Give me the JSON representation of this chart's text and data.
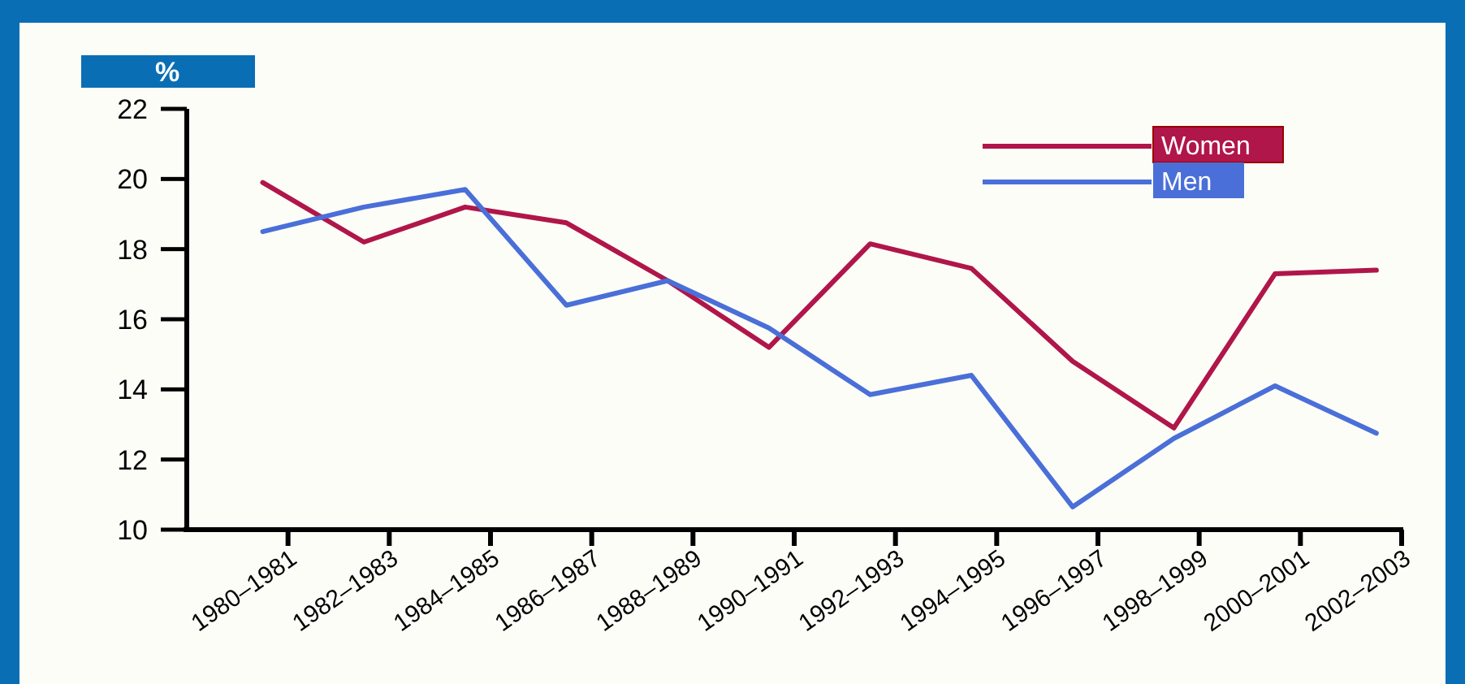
{
  "chart_data": {
    "type": "line",
    "ylabel": "%",
    "categories": [
      "1980–1981",
      "1982–1983",
      "1984–1985",
      "1986–1987",
      "1988–1989",
      "1990–1991",
      "1992–1993",
      "1994–1995",
      "1996–1997",
      "1998–1999",
      "2000–2001",
      "2002–2003"
    ],
    "series": [
      {
        "name": "Women",
        "color": "#b0164a",
        "values": [
          19.9,
          18.2,
          19.2,
          18.75,
          17.1,
          15.2,
          18.15,
          17.45,
          14.8,
          12.9,
          17.3,
          17.4
        ]
      },
      {
        "name": "Men",
        "color": "#4a6fd8",
        "values": [
          18.5,
          19.2,
          19.7,
          16.4,
          17.1,
          15.75,
          13.85,
          14.4,
          10.65,
          12.6,
          14.1,
          12.75
        ]
      }
    ],
    "ylim": [
      10,
      22
    ],
    "yticks": [
      10,
      12,
      14,
      16,
      18,
      20,
      22
    ],
    "grid": false,
    "legend": "top right",
    "marker": "none",
    "line_style": "solid"
  }
}
